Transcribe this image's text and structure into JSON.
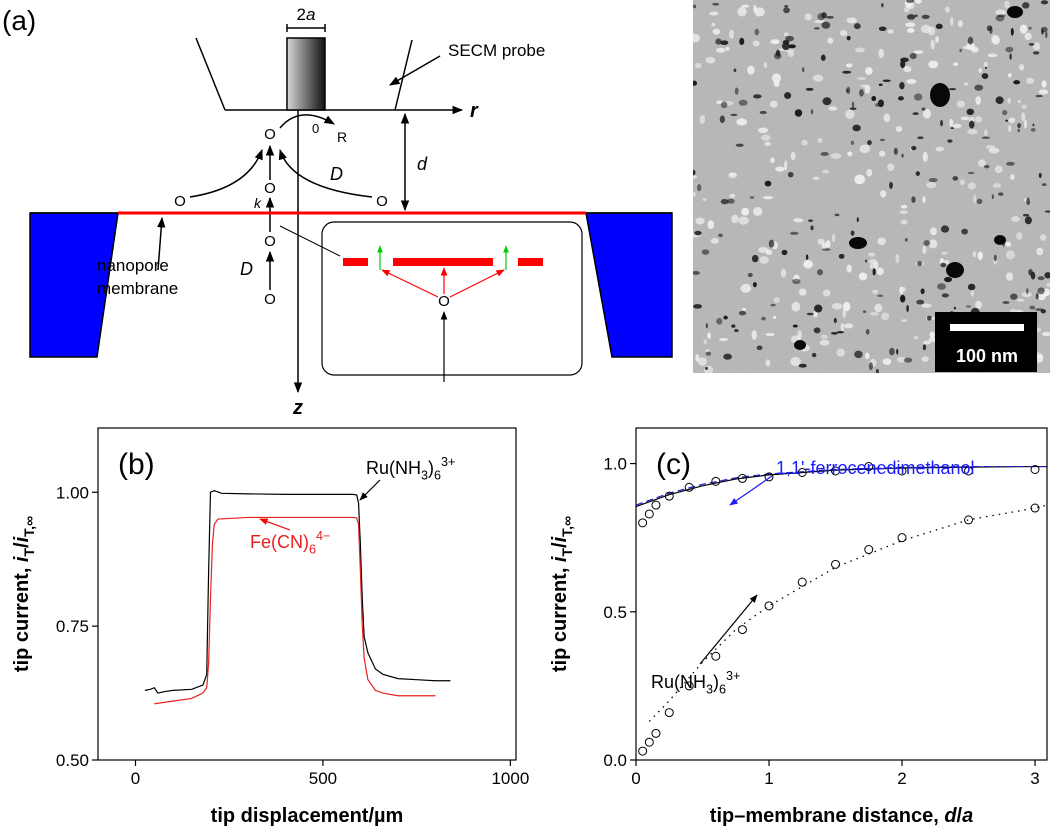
{
  "diagram": {
    "panel_label": "(a)",
    "probe_width": [
      {
        "text": "2"
      },
      {
        "text": "a",
        "style": "italic"
      }
    ],
    "probe_label": "SECM probe",
    "r_axis": "r",
    "z_axis": "z",
    "origin": "0",
    "radius": "R",
    "distance": "d",
    "diffusion": "D",
    "rate": "k",
    "species": "O",
    "membrane_label": [
      "nanopore",
      "membrane"
    ]
  },
  "micrograph": {
    "scale_bar": "100 nm"
  },
  "chart_data": [
    {
      "type": "line",
      "panel_label": "(b)",
      "xlabel": [
        {
          "text": "tip displacement/µm"
        }
      ],
      "ylabel": [
        {
          "text": "tip current, "
        },
        {
          "text": "i",
          "style": "italic"
        },
        {
          "text": "T",
          "style": "sub"
        },
        {
          "text": "/"
        },
        {
          "text": "i",
          "style": "italic"
        },
        {
          "text": "T,∞",
          "style": "sub"
        }
      ],
      "xlim": [
        -100,
        1015
      ],
      "xticks": [
        0,
        500,
        1000
      ],
      "ylim": [
        0.5,
        1.12
      ],
      "yticks": [
        {
          "value": 0.5,
          "label": "0.50"
        },
        {
          "value": 0.75,
          "label": "0.75"
        },
        {
          "value": 1,
          "label": "1.00"
        }
      ],
      "series": [
        {
          "color": "#000000",
          "style": "solid",
          "x": [
            25,
            40,
            50,
            60,
            80,
            100,
            150,
            180,
            190,
            195,
            200,
            210,
            230,
            300,
            400,
            500,
            580,
            590,
            595,
            600,
            605,
            610,
            620,
            640,
            660,
            700,
            750,
            800,
            840
          ],
          "values": [
            0.63,
            0.632,
            0.635,
            0.625,
            0.628,
            0.63,
            0.632,
            0.64,
            0.66,
            0.85,
            1.0,
            1.003,
            0.998,
            0.997,
            0.996,
            0.996,
            0.996,
            0.995,
            0.98,
            0.9,
            0.8,
            0.73,
            0.7,
            0.67,
            0.66,
            0.652,
            0.65,
            0.648,
            0.648
          ]
        },
        {
          "color": "#e8201f",
          "style": "solid",
          "x": [
            50,
            100,
            150,
            180,
            190,
            195,
            200,
            205,
            210,
            220,
            300,
            400,
            500,
            580,
            590,
            595,
            600,
            605,
            610,
            620,
            640,
            660,
            700,
            750,
            800
          ],
          "values": [
            0.605,
            0.61,
            0.615,
            0.625,
            0.635,
            0.68,
            0.8,
            0.9,
            0.94,
            0.95,
            0.953,
            0.953,
            0.953,
            0.953,
            0.952,
            0.94,
            0.85,
            0.75,
            0.69,
            0.65,
            0.63,
            0.625,
            0.62,
            0.62,
            0.62
          ]
        }
      ],
      "annotations": [
        {
          "color": "#000000",
          "text": [
            {
              "text": "Ru(NH"
            },
            {
              "text": "3",
              "style": "sub"
            },
            {
              "text": ")"
            },
            {
              "text": "6",
              "style": "sub"
            },
            {
              "text": "3+",
              "style": "sup"
            }
          ]
        },
        {
          "color": "#e8201f",
          "text": [
            {
              "text": "Fe(CN)"
            },
            {
              "text": "6",
              "style": "sub"
            },
            {
              "text": "4−",
              "style": "sup"
            }
          ]
        }
      ]
    },
    {
      "type": "line",
      "panel_label": "(c)",
      "xlabel": [
        {
          "text": "tip–membrane distance, "
        },
        {
          "text": "d",
          "style": "italic"
        },
        {
          "text": "/"
        },
        {
          "text": "a",
          "style": "italic"
        }
      ],
      "ylabel": [
        {
          "text": "tip current, "
        },
        {
          "text": "i",
          "style": "italic"
        },
        {
          "text": "T",
          "style": "sub"
        },
        {
          "text": "/"
        },
        {
          "text": "i",
          "style": "italic"
        },
        {
          "text": "T,∞",
          "style": "sub"
        }
      ],
      "xlim": [
        0,
        3.09
      ],
      "xticks": [
        0,
        1,
        2,
        3
      ],
      "ylim": [
        0,
        1.12
      ],
      "yticks": [
        {
          "value": 0,
          "label": "0.0"
        },
        {
          "value": 0.5,
          "label": "0.5"
        },
        {
          "value": 1,
          "label": "1.0"
        }
      ],
      "series": [
        {
          "color": "#000000",
          "style": "solid",
          "x": [
            0,
            0.25,
            0.5,
            0.75,
            1,
            1.5,
            2,
            2.5,
            3,
            3.09
          ],
          "values": [
            0.855,
            0.895,
            0.925,
            0.948,
            0.962,
            0.978,
            0.985,
            0.988,
            0.99,
            0.99
          ]
        },
        {
          "color": "#1c1cd0",
          "style": "dashed",
          "x": [
            0,
            0.25,
            0.5,
            0.75,
            1,
            1.5,
            2,
            2.5,
            3,
            3.09
          ],
          "values": [
            0.86,
            0.9,
            0.93,
            0.952,
            0.965,
            0.98,
            0.987,
            0.99,
            0.99,
            0.99
          ]
        },
        {
          "color": "#000000",
          "style": "markers",
          "x": [
            0.05,
            0.1,
            0.15,
            0.25,
            0.4,
            0.6,
            0.8,
            1.0,
            1.25,
            1.5,
            1.75,
            2.0,
            2.5,
            3.0
          ],
          "values": [
            0.8,
            0.83,
            0.86,
            0.89,
            0.92,
            0.94,
            0.95,
            0.955,
            0.97,
            0.975,
            0.99,
            0.975,
            0.975,
            0.98
          ]
        },
        {
          "color": "#000000",
          "style": "dotted",
          "x": [
            0.1,
            0.25,
            0.5,
            0.75,
            1,
            1.5,
            2,
            2.5,
            3,
            3.09
          ],
          "values": [
            0.13,
            0.2,
            0.33,
            0.44,
            0.52,
            0.65,
            0.74,
            0.81,
            0.85,
            0.86
          ]
        },
        {
          "color": "#000000",
          "style": "markers",
          "x": [
            0.05,
            0.1,
            0.15,
            0.25,
            0.4,
            0.6,
            0.8,
            1.0,
            1.25,
            1.5,
            1.75,
            2.0,
            2.5,
            3.0
          ],
          "values": [
            0.03,
            0.06,
            0.09,
            0.16,
            0.25,
            0.35,
            0.44,
            0.52,
            0.6,
            0.66,
            0.71,
            0.75,
            0.81,
            0.85
          ]
        }
      ],
      "annotations": [
        {
          "color": "#1a1aff",
          "text": [
            {
              "text": "1,1'-ferrocenedimethanol"
            }
          ]
        },
        {
          "color": "#000000",
          "text": [
            {
              "text": "Ru(NH"
            },
            {
              "text": "3",
              "style": "sub"
            },
            {
              "text": ")"
            },
            {
              "text": "6",
              "style": "sub"
            },
            {
              "text": "3+",
              "style": "sup"
            }
          ]
        }
      ]
    }
  ]
}
